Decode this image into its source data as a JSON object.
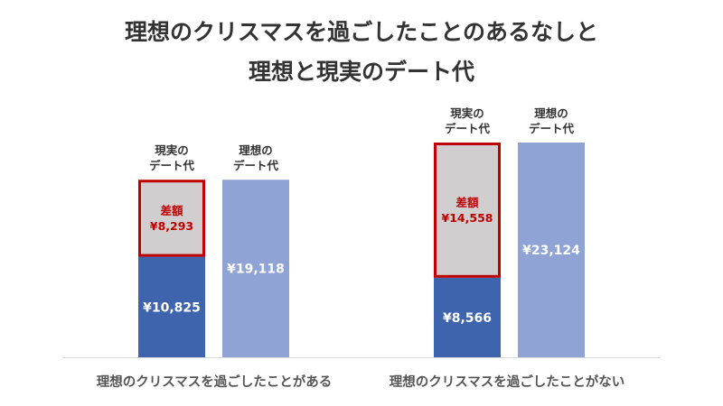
{
  "chart_data": {
    "type": "bar",
    "title_line1": "理想のクリスマスを過ごしたことのあるなしと",
    "title_line2": "理想と現実のデート代",
    "categories": [
      "理想のクリスマスを過ごしたことがある",
      "理想のクリスマスを過ごしたことがない"
    ],
    "series": [
      {
        "name": "現実のデート代",
        "values": [
          10825,
          8566
        ]
      },
      {
        "name": "理想のデート代",
        "values": [
          19118,
          23124
        ]
      }
    ],
    "difference": {
      "name": "差額",
      "values": [
        8293,
        14558
      ]
    },
    "value_labels": {
      "real": [
        "¥10,825",
        "¥8,566"
      ],
      "ideal": [
        "¥19,118",
        "¥23,124"
      ],
      "difference": [
        "¥8,293",
        "¥14,558"
      ]
    },
    "header_labels": {
      "real": [
        "現実の",
        "デート代"
      ],
      "ideal": [
        "理想の",
        "デート代"
      ]
    },
    "ylim": [
      0,
      23124
    ],
    "colors": {
      "real": "#3d64ad",
      "ideal": "#8fa4d4",
      "difference_fill": "#d0cece",
      "difference_border": "#c00000",
      "axis": "#d9d9d9"
    }
  }
}
